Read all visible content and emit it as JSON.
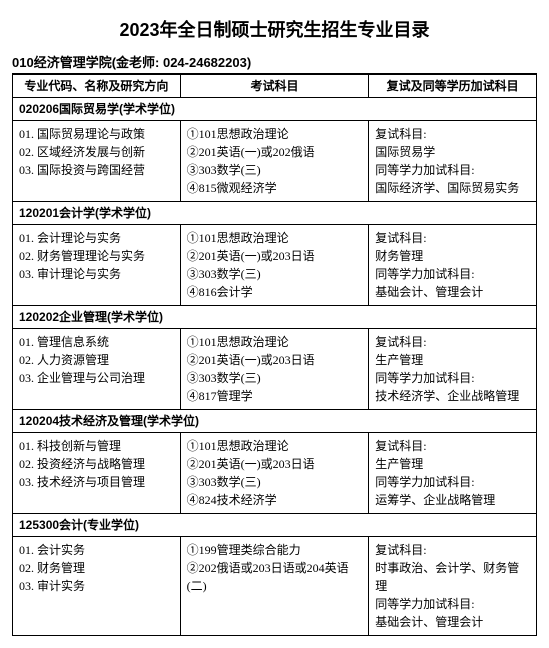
{
  "title": "2023年全日制硕士研究生招生专业目录",
  "subtitle": "010经济管理学院(金老师: 024-24682203)",
  "headers": {
    "c1": "专业代码、名称及研究方向",
    "c2": "考试科目",
    "c3": "复试及同等学历加试科目"
  },
  "sections": [
    {
      "code": "020206国际贸易学(学术学位)",
      "dirs": "01. 国际贸易理论与政策\n02. 区域经济发展与创新\n03. 国际投资与跨国经营",
      "exams": "①101思想政治理论\n②201英语(一)或202俄语\n③303数学(三)\n④815微观经济学",
      "retest": "复试科目:\n国际贸易学\n同等学力加试科目:\n国际经济学、国际贸易实务"
    },
    {
      "code": "120201会计学(学术学位)",
      "dirs": "01. 会计理论与实务\n02. 财务管理理论与实务\n03. 审计理论与实务",
      "exams": "①101思想政治理论\n②201英语(一)或203日语\n③303数学(三)\n④816会计学",
      "retest": "复试科目:\n财务管理\n同等学力加试科目:\n基础会计、管理会计"
    },
    {
      "code": "120202企业管理(学术学位)",
      "dirs": "01. 管理信息系统\n02. 人力资源管理\n03. 企业管理与公司治理",
      "exams": "①101思想政治理论\n②201英语(一)或203日语\n③303数学(三)\n④817管理学",
      "retest": "复试科目:\n生产管理\n同等学力加试科目:\n技术经济学、企业战略管理"
    },
    {
      "code": "120204技术经济及管理(学术学位)",
      "dirs": "01. 科技创新与管理\n02. 投资经济与战略管理\n03. 技术经济与项目管理",
      "exams": "①101思想政治理论\n②201英语(一)或203日语\n③303数学(三)\n④824技术经济学",
      "retest": "复试科目:\n生产管理\n同等学力加试科目:\n运筹学、企业战略管理"
    },
    {
      "code": "125300会计(专业学位)",
      "dirs": "01. 会计实务\n02. 财务管理\n03. 审计实务",
      "exams": "①199管理类综合能力\n②202俄语或203日语或204英语(二)",
      "retest": "复试科目:\n时事政治、会计学、财务管理\n同等学力加试科目:\n基础会计、管理会计"
    }
  ]
}
